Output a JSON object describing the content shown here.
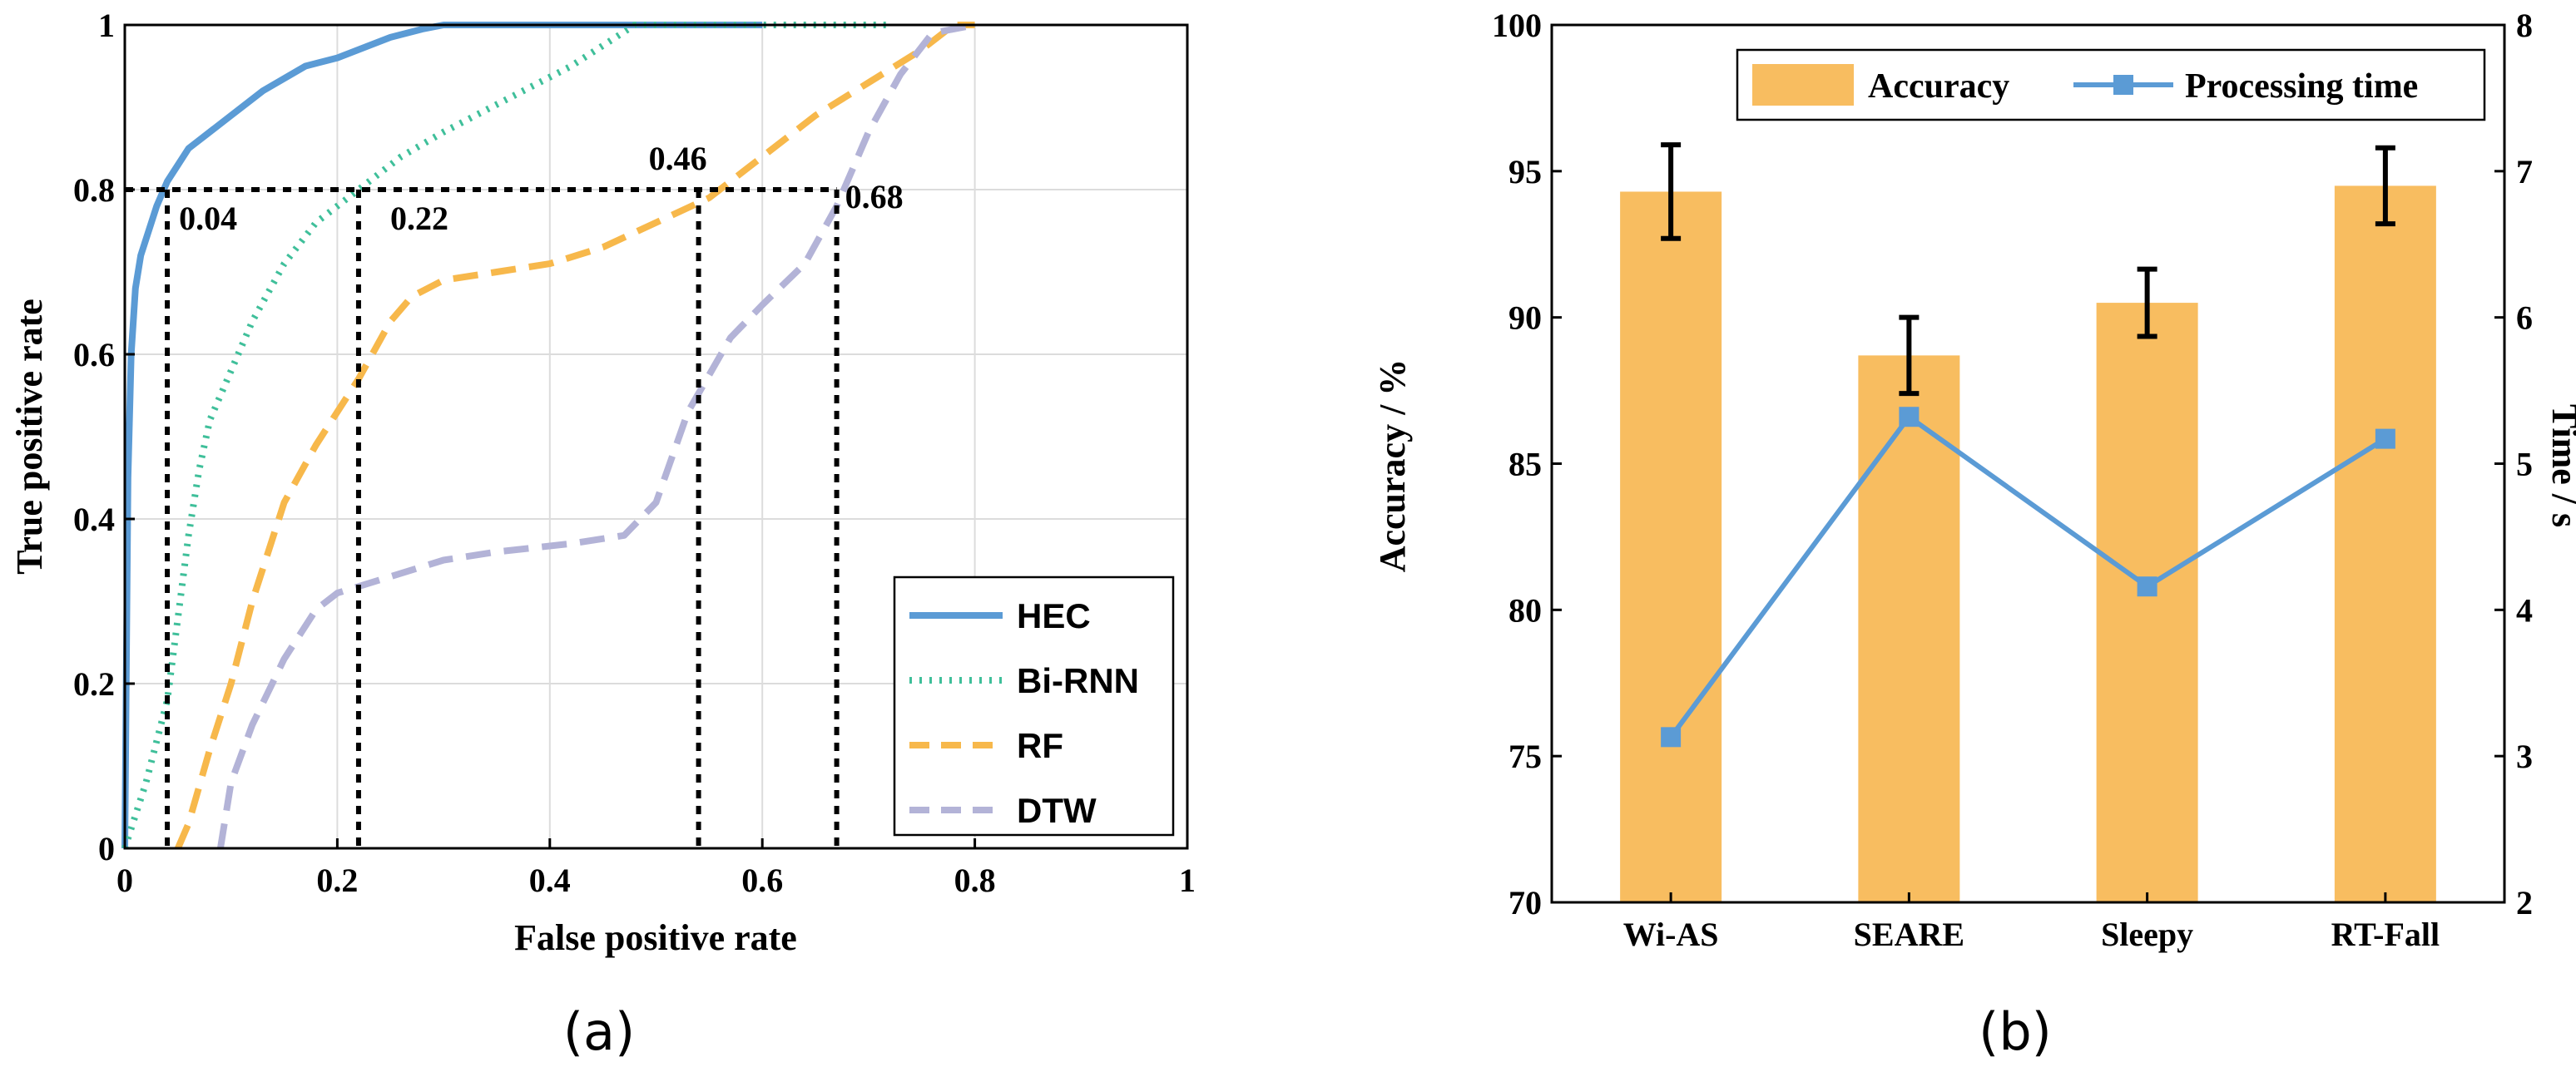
{
  "chart_data": [
    {
      "type": "line",
      "subplot_label": "(a)",
      "xlabel": "False positive rate",
      "ylabel": "True positive rate",
      "xlim": [
        0,
        1
      ],
      "ylim": [
        0,
        1
      ],
      "grid": true,
      "xticks": [
        "0",
        "0.2",
        "0.4",
        "0.6",
        "0.8",
        "1"
      ],
      "yticks": [
        "0",
        "0.2",
        "0.4",
        "0.6",
        "0.8",
        "1"
      ],
      "legend_position": "bottom-right",
      "series": [
        {
          "name": "HEC",
          "color": "#5b9bd5",
          "style": "solid",
          "x": [
            0,
            0.003,
            0.006,
            0.01,
            0.015,
            0.02,
            0.03,
            0.04,
            0.05,
            0.06,
            0.08,
            0.1,
            0.13,
            0.17,
            0.2,
            0.23,
            0.25,
            0.28,
            0.3,
            0.32,
            0.4,
            0.6
          ],
          "y": [
            0,
            0.45,
            0.6,
            0.68,
            0.72,
            0.74,
            0.78,
            0.81,
            0.83,
            0.85,
            0.87,
            0.89,
            0.92,
            0.95,
            0.96,
            0.975,
            0.985,
            0.995,
            1,
            1,
            1,
            1
          ]
        },
        {
          "name": "Bi-RNN",
          "color": "#3fbf9a",
          "style": "dotted",
          "x": [
            0,
            0.02,
            0.04,
            0.05,
            0.06,
            0.07,
            0.08,
            0.1,
            0.12,
            0.15,
            0.18,
            0.22,
            0.26,
            0.3,
            0.36,
            0.42,
            0.48,
            0.55,
            0.6,
            0.72
          ],
          "y": [
            0,
            0.08,
            0.18,
            0.28,
            0.38,
            0.46,
            0.52,
            0.58,
            0.64,
            0.71,
            0.76,
            0.8,
            0.84,
            0.87,
            0.91,
            0.95,
            1,
            1,
            1,
            1
          ]
        },
        {
          "name": "RF",
          "color": "#f7b84b",
          "style": "dashed",
          "x": [
            0.05,
            0.06,
            0.08,
            0.1,
            0.12,
            0.15,
            0.18,
            0.2,
            0.22,
            0.25,
            0.27,
            0.3,
            0.35,
            0.4,
            0.45,
            0.5,
            0.55,
            0.6,
            0.65,
            0.7,
            0.75,
            0.78,
            0.8
          ],
          "y": [
            0,
            0.03,
            0.12,
            0.2,
            0.3,
            0.42,
            0.49,
            0.53,
            0.57,
            0.64,
            0.67,
            0.69,
            0.7,
            0.71,
            0.73,
            0.76,
            0.79,
            0.84,
            0.89,
            0.93,
            0.97,
            1,
            1
          ]
        },
        {
          "name": "DTW",
          "color": "#b3b3d7",
          "style": "dashed",
          "x": [
            0.09,
            0.1,
            0.12,
            0.15,
            0.18,
            0.2,
            0.25,
            0.3,
            0.35,
            0.42,
            0.47,
            0.5,
            0.53,
            0.57,
            0.6,
            0.64,
            0.67,
            0.7,
            0.73,
            0.76,
            0.8
          ],
          "y": [
            0,
            0.08,
            0.15,
            0.23,
            0.29,
            0.31,
            0.33,
            0.35,
            0.36,
            0.37,
            0.38,
            0.42,
            0.53,
            0.62,
            0.66,
            0.71,
            0.78,
            0.87,
            0.94,
            0.99,
            1
          ]
        }
      ],
      "reference_level": 0.8,
      "annotations": [
        {
          "label": "0.04",
          "x": 0.04
        },
        {
          "label": "0.22",
          "x": 0.22
        },
        {
          "label": "0.46",
          "x": 0.54
        },
        {
          "label": "0.68",
          "x": 0.67
        }
      ]
    },
    {
      "type": "bar",
      "subplot_label": "(b)",
      "categories": [
        "Wi-AS",
        "SEARE",
        "Sleepy",
        "RT-Fall"
      ],
      "series": [
        {
          "name": "Accuracy",
          "axis": "left",
          "kind": "bar",
          "color": "#f8bd60",
          "values": [
            94.3,
            88.7,
            90.5,
            94.5
          ],
          "error": [
            1.6,
            1.3,
            1.15,
            1.3
          ]
        },
        {
          "name": "Processing time",
          "axis": "right",
          "kind": "line",
          "color": "#5b9bd5",
          "values": [
            3.13,
            5.32,
            4.16,
            5.17
          ]
        }
      ],
      "ylabel": "Accuracy / %",
      "y2label": "Time / s",
      "ylim": [
        70,
        100
      ],
      "y2lim": [
        2,
        8
      ],
      "yticks": [
        "70",
        "75",
        "80",
        "85",
        "90",
        "95",
        "100"
      ],
      "y2ticks": [
        "2",
        "3",
        "4",
        "5",
        "6",
        "7",
        "8"
      ],
      "legend_position": "top"
    }
  ]
}
